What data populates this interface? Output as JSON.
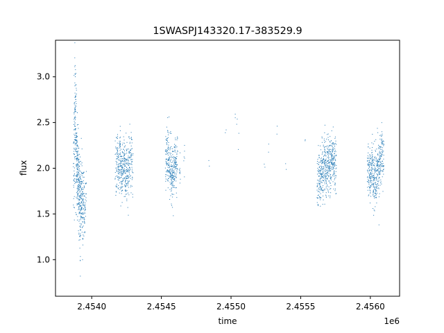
{
  "chart_data": {
    "type": "scatter",
    "title": "1SWASPJ143320.17-383529.9",
    "xlabel": "time",
    "ylabel": "flux",
    "x_offset_label": "1e6",
    "xlim": [
      2453740,
      2456210
    ],
    "ylim": [
      0.6,
      3.4
    ],
    "x_ticks": [
      2454000,
      2454500,
      2455000,
      2455500,
      2456000
    ],
    "x_tick_labels": [
      "2.4540",
      "2.4545",
      "2.4550",
      "2.4555",
      "2.4560"
    ],
    "y_ticks": [
      1.0,
      1.5,
      2.0,
      2.5,
      3.0
    ],
    "y_tick_labels": [
      "1.0",
      "1.5",
      "2.0",
      "2.5",
      "3.0"
    ],
    "grid": false,
    "point_color": "#1f77b4",
    "series": [
      {
        "x": [
          2453870,
          2453875,
          2453880,
          2453885,
          2453890,
          2453895,
          2453900,
          2453905,
          2453910,
          2453915,
          2453920,
          2453925,
          2453930,
          2453935,
          2453940,
          2453945,
          2453950,
          2453955,
          2454170,
          2454180,
          2454190,
          2454200,
          2454210,
          2454220,
          2454230,
          2454240,
          2454250,
          2454260,
          2454270,
          2454280,
          2454290,
          2454530,
          2454540,
          2454550,
          2454560,
          2454570,
          2454580,
          2454590,
          2454600,
          2454610,
          2454630,
          2454660,
          2454840,
          2454960,
          2455030,
          2455040,
          2455050,
          2455240,
          2455265,
          2455330,
          2455390,
          2455530,
          2455620,
          2455630,
          2455640,
          2455650,
          2455660,
          2455670,
          2455680,
          2455690,
          2455700,
          2455710,
          2455720,
          2455730,
          2455740,
          2455750,
          2455980,
          2455990,
          2456000,
          2456010,
          2456020,
          2456030,
          2456040,
          2456050,
          2456060,
          2456070,
          2456080,
          2456090
        ],
        "y": [
          2.05,
          2.5,
          2.6,
          2.3,
          2.1,
          2.0,
          1.95,
          1.8,
          1.7,
          1.6,
          1.65,
          1.7,
          1.55,
          1.6,
          1.65,
          1.5,
          1.6,
          1.7,
          2.05,
          2.1,
          2.0,
          2.1,
          1.95,
          2.0,
          2.05,
          1.9,
          2.0,
          1.95,
          2.05,
          2.1,
          2.0,
          2.1,
          2.15,
          2.05,
          2.0,
          1.95,
          1.9,
          2.0,
          2.05,
          2.1,
          2.0,
          2.1,
          2.1,
          2.4,
          2.6,
          2.5,
          2.3,
          2.0,
          2.2,
          2.4,
          2.05,
          2.35,
          1.85,
          1.9,
          1.95,
          2.0,
          1.95,
          2.05,
          2.0,
          2.1,
          2.05,
          2.0,
          2.15,
          2.1,
          2.05,
          2.0,
          2.0,
          1.95,
          1.9,
          2.05,
          1.85,
          1.9,
          1.95,
          2.0,
          2.05,
          2.1,
          2.15,
          2.1
        ],
        "spread": [
          0.3,
          0.35,
          0.35,
          0.3,
          0.25,
          0.25,
          0.2,
          0.2,
          0.25,
          0.25,
          0.2,
          0.2,
          0.25,
          0.25,
          0.2,
          0.2,
          0.15,
          0.15,
          0.15,
          0.15,
          0.15,
          0.15,
          0.15,
          0.15,
          0.15,
          0.15,
          0.15,
          0.15,
          0.15,
          0.15,
          0.15,
          0.15,
          0.15,
          0.15,
          0.15,
          0.15,
          0.15,
          0.15,
          0.15,
          0.15,
          0.1,
          0.1,
          0.05,
          0.05,
          0.05,
          0.05,
          0.05,
          0.05,
          0.05,
          0.05,
          0.05,
          0.05,
          0.15,
          0.15,
          0.15,
          0.15,
          0.15,
          0.15,
          0.15,
          0.15,
          0.15,
          0.15,
          0.15,
          0.15,
          0.15,
          0.15,
          0.15,
          0.15,
          0.15,
          0.15,
          0.15,
          0.15,
          0.15,
          0.15,
          0.15,
          0.15,
          0.15,
          0.15
        ],
        "density": [
          30,
          40,
          40,
          40,
          40,
          40,
          40,
          40,
          40,
          40,
          30,
          30,
          25,
          25,
          20,
          15,
          10,
          10,
          20,
          30,
          35,
          40,
          40,
          40,
          40,
          40,
          40,
          35,
          30,
          25,
          20,
          25,
          35,
          40,
          40,
          40,
          40,
          40,
          35,
          25,
          10,
          6,
          2,
          2,
          2,
          2,
          2,
          2,
          2,
          2,
          2,
          2,
          25,
          35,
          40,
          40,
          40,
          40,
          40,
          40,
          40,
          40,
          40,
          40,
          35,
          25,
          25,
          35,
          40,
          40,
          40,
          40,
          40,
          40,
          40,
          40,
          35,
          25
        ]
      }
    ]
  }
}
